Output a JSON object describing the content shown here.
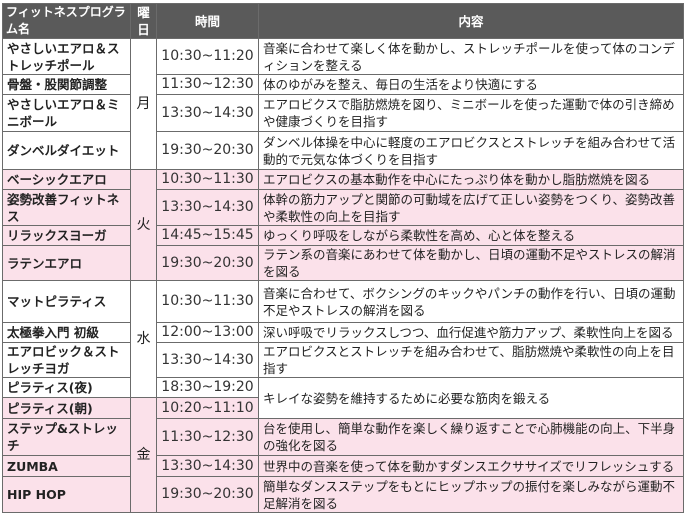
{
  "headers": {
    "name": "フィットネスプログラム名",
    "day": "曜日",
    "time": "時間",
    "content": "内容"
  },
  "colors": {
    "header_bg": "#5a5a5a",
    "pink_row": "#fbe1ea",
    "border": "#6b6b6b"
  },
  "days": {
    "mon": "月",
    "tue": "火",
    "wed": "水",
    "fri": "金"
  },
  "rows": [
    {
      "name": "やさしいエアロ＆ストレッチポール",
      "time": "10:30~11:20",
      "content": "音楽に合わせて楽しく体を動かし、ストレッチポールを使って体のコンディションを整える"
    },
    {
      "name": "骨盤・股関節調整",
      "time": "11:30~12:30",
      "content": "体のゆがみを整え、毎日の生活をより快適にする"
    },
    {
      "name": "やさしいエアロ＆ミニボール",
      "time": "13:30~14:30",
      "content": "エアロビクスで脂肪燃焼を図り、ミニボールを使った運動で体の引き締めや健康づくりを目指す"
    },
    {
      "name": "ダンベルダイエット",
      "time": "19:30~20:30",
      "content": "ダンベル体操を中心に軽度のエアロビクスとストレッチを組み合わせて活動的で元気な体づくりを目指す"
    },
    {
      "name": "ベーシックエアロ",
      "time": "10:30~11:30",
      "content": "エアロビクスの基本動作を中心にたっぷり体を動かし脂肪燃焼を図る"
    },
    {
      "name": "姿勢改善フィットネス",
      "time": "13:30~14:30",
      "content": "体幹の筋力アップと関節の可動域を広げて正しい姿勢をつくり、姿勢改善や柔軟性の向上を目指す"
    },
    {
      "name": "リラックスヨーガ",
      "time": "14:45~15:45",
      "content": "ゆっくり呼吸をしながら柔軟性を高め、心と体を整える"
    },
    {
      "name": "ラテンエアロ",
      "time": "19:30~20:30",
      "content": "ラテン系の音楽にあわせて体を動かし、日頃の運動不足やストレスの解消を図る"
    },
    {
      "name": "マットピラティス",
      "time": "10:30~11:30",
      "content": "音楽に合わせて、ボクシングのキックやパンチの動作を行い、日頃の運動不足やストレスの解消を図る"
    },
    {
      "name": "太極拳入門 初級",
      "time": "12:00~13:00",
      "content": "深い呼吸でリラックスしつつ、血行促進や筋力アップ、柔軟性向上を図る"
    },
    {
      "name": "エアロビック＆ストレッチヨガ",
      "time": "13:30~14:30",
      "content": "エアロビクスとストレッチを組み合わせて、脂肪燃焼や柔軟性の向上を目指す"
    },
    {
      "name": "ピラティス(夜)",
      "time": "18:30~19:20",
      "content": "キレイな姿勢を維持するために必要な筋肉を鍛える"
    },
    {
      "name": "ピラティス(朝)",
      "time": "10:20~11:10"
    },
    {
      "name": "ステップ&ストレッチ",
      "time": "11:30~12:30",
      "content": "台を使用し、簡単な動作を楽しく繰り返すことで心肺機能の向上、下半身の強化を図る"
    },
    {
      "name": "ZUMBA",
      "time": "13:30~14:30",
      "content": "世界中の音楽を使って体を動かすダンスエクササイズでリフレッシュする"
    },
    {
      "name": "HIP HOP",
      "time": "19:30~20:30",
      "content": "簡単なダンスステップをもとにヒップホップの振付を楽しみながら運動不足解消を図る"
    }
  ]
}
